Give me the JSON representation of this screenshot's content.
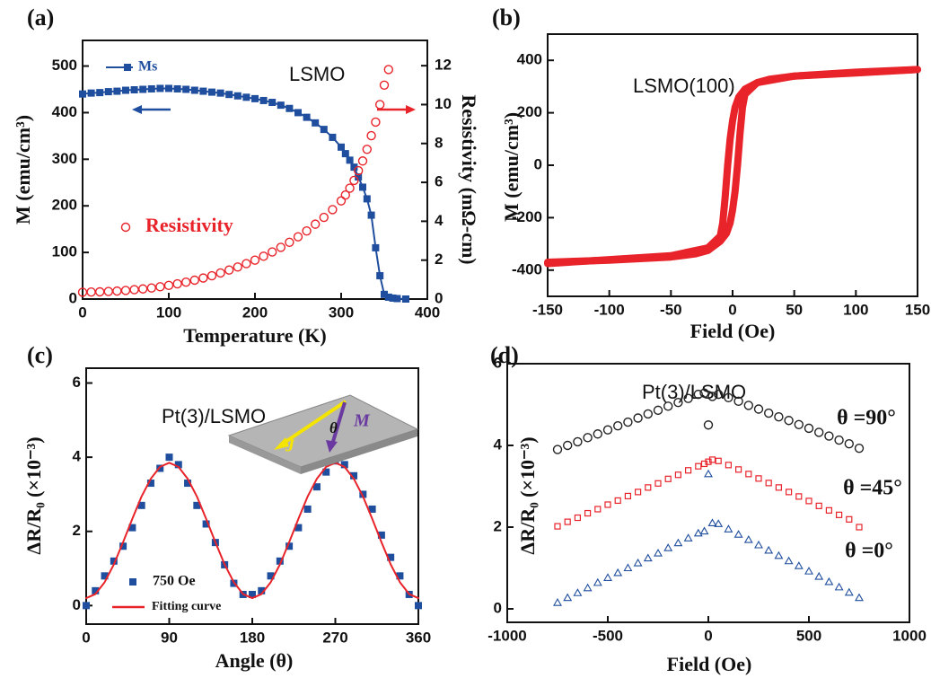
{
  "chart_data": [
    {
      "type": "line",
      "label": "(a)",
      "xlabel": "Temperature (K)",
      "ylabel": "M (emu/cm³)",
      "y2label": "Resistivity (mΩ-cm)",
      "annotations": [
        "LSMO"
      ],
      "xlim": [
        0,
        400
      ],
      "xticks": [
        0,
        100,
        200,
        300,
        400
      ],
      "ylim": [
        0,
        555
      ],
      "yticks": [
        0,
        100,
        200,
        300,
        400,
        500
      ],
      "y2lim": [
        0,
        13.3
      ],
      "y2ticks": [
        0,
        2,
        4,
        6,
        8,
        10,
        12
      ],
      "series": [
        {
          "name": "Ms",
          "color": "#1f4e9e",
          "marker": "square",
          "line": true,
          "x": [
            0,
            10,
            20,
            30,
            40,
            50,
            60,
            70,
            80,
            90,
            100,
            110,
            120,
            130,
            140,
            150,
            160,
            170,
            180,
            190,
            200,
            210,
            220,
            230,
            240,
            250,
            260,
            270,
            280,
            290,
            300,
            305,
            310,
            315,
            320,
            325,
            330,
            335,
            340,
            345,
            350,
            355,
            360,
            365,
            375
          ],
          "values": [
            440,
            442,
            443,
            445,
            446,
            448,
            449,
            450,
            451,
            452,
            452,
            451,
            450,
            448,
            446,
            444,
            442,
            439,
            436,
            433,
            430,
            426,
            422,
            416,
            409,
            400,
            390,
            378,
            364,
            347,
            326,
            312,
            298,
            283,
            262,
            240,
            215,
            180,
            110,
            50,
            10,
            4,
            2,
            1,
            0
          ]
        },
        {
          "name": "Resistivity",
          "color": "#e8232a",
          "marker": "circle-open",
          "axis": "y2",
          "x": [
            0,
            10,
            20,
            30,
            40,
            50,
            60,
            70,
            80,
            90,
            100,
            110,
            120,
            130,
            140,
            150,
            160,
            170,
            180,
            190,
            200,
            210,
            220,
            230,
            240,
            250,
            260,
            270,
            280,
            290,
            300,
            305,
            310,
            315,
            320,
            325,
            330,
            335,
            340,
            345,
            350,
            355
          ],
          "values": [
            0.35,
            0.36,
            0.37,
            0.39,
            0.41,
            0.44,
            0.48,
            0.52,
            0.57,
            0.63,
            0.7,
            0.78,
            0.87,
            0.97,
            1.08,
            1.2,
            1.34,
            1.49,
            1.65,
            1.82,
            2.0,
            2.2,
            2.42,
            2.66,
            2.92,
            3.2,
            3.5,
            3.85,
            4.2,
            4.6,
            5.05,
            5.35,
            5.7,
            6.1,
            6.6,
            7.1,
            7.7,
            8.4,
            9.1,
            10.0,
            11.0,
            11.8
          ]
        }
      ]
    },
    {
      "type": "line",
      "label": "(b)",
      "xlabel": "Field (Oe)",
      "ylabel": "M (emu/cm³)",
      "annotations": [
        "LSMO(100)"
      ],
      "xlim": [
        -150,
        150
      ],
      "xticks": [
        -150,
        -100,
        -50,
        0,
        50,
        100,
        150
      ],
      "ylim": [
        -500,
        500
      ],
      "yticks": [
        -400,
        -200,
        0,
        200,
        400
      ],
      "series": [
        {
          "color": "#e8232a",
          "style": "thick-line",
          "x": [
            150,
            100,
            50,
            30,
            20,
            10,
            5,
            2,
            0,
            -2,
            -4,
            -6,
            -8,
            -10,
            -20,
            -50,
            -100,
            -150
          ],
          "values": [
            365,
            355,
            340,
            328,
            315,
            290,
            260,
            220,
            170,
            100,
            0,
            -120,
            -220,
            -270,
            -315,
            -345,
            -360,
            -375
          ]
        },
        {
          "color": "#e8232a",
          "style": "thick-line",
          "x": [
            -150,
            -100,
            -50,
            -30,
            -20,
            -10,
            -5,
            -2,
            0,
            2,
            4,
            6,
            8,
            10,
            20,
            50,
            100,
            150
          ],
          "values": [
            -370,
            -362,
            -350,
            -338,
            -325,
            -290,
            -260,
            -220,
            -170,
            -100,
            0,
            120,
            220,
            270,
            315,
            340,
            352,
            365
          ]
        }
      ]
    },
    {
      "type": "line",
      "label": "(c)",
      "xlabel": "Angle (θ)",
      "ylabel": "ΔR/R₀ (×10⁻³)",
      "annotations": [
        "Pt(3)/LSMO",
        "θ",
        "J",
        "M"
      ],
      "xlim": [
        0,
        360
      ],
      "xticks": [
        0,
        90,
        180,
        270,
        360
      ],
      "ylim": [
        -0.5,
        6.4
      ],
      "yticks": [
        0,
        2,
        4,
        6
      ],
      "series": [
        {
          "name": "750 Oe",
          "color": "#1f4e9e",
          "marker": "square",
          "x": [
            0,
            10,
            20,
            30,
            40,
            50,
            60,
            70,
            80,
            90,
            100,
            110,
            120,
            130,
            140,
            150,
            160,
            170,
            180,
            190,
            200,
            210,
            220,
            230,
            240,
            250,
            260,
            270,
            280,
            290,
            300,
            310,
            320,
            330,
            340,
            350,
            360
          ],
          "values": [
            0,
            0.4,
            0.8,
            1.2,
            1.6,
            2.1,
            2.7,
            3.3,
            3.7,
            4.0,
            3.8,
            3.3,
            2.7,
            2.2,
            1.7,
            1.1,
            0.6,
            0.3,
            0.3,
            0.4,
            0.8,
            1.2,
            1.6,
            2.1,
            2.6,
            3.2,
            3.6,
            3.9,
            3.8,
            3.5,
            3.0,
            2.6,
            1.9,
            1.3,
            0.8,
            0.3,
            0.0
          ]
        },
        {
          "name": "Fitting curve",
          "color": "#e8232a",
          "line": true,
          "x": [
            0,
            10,
            20,
            30,
            40,
            50,
            60,
            70,
            80,
            90,
            100,
            110,
            120,
            130,
            140,
            150,
            160,
            170,
            180,
            190,
            200,
            210,
            220,
            230,
            240,
            250,
            260,
            270,
            280,
            290,
            300,
            310,
            320,
            330,
            340,
            350,
            360
          ],
          "values": [
            0.2,
            0.31,
            0.63,
            1.11,
            1.71,
            2.34,
            2.94,
            3.42,
            3.74,
            3.85,
            3.74,
            3.42,
            2.94,
            2.34,
            1.71,
            1.11,
            0.63,
            0.31,
            0.2,
            0.31,
            0.63,
            1.11,
            1.71,
            2.34,
            2.94,
            3.42,
            3.74,
            3.85,
            3.74,
            3.42,
            2.94,
            2.34,
            1.71,
            1.11,
            0.63,
            0.31,
            0.2
          ]
        }
      ]
    },
    {
      "type": "scatter",
      "label": "(d)",
      "xlabel": "Field (Oe)",
      "ylabel": "ΔR/R₀ (×10⁻³)",
      "annotations": [
        "Pt(3)/LSMO"
      ],
      "xlim": [
        -1000,
        1000
      ],
      "xticks": [
        -1000,
        -500,
        0,
        500,
        1000
      ],
      "ylim": [
        -0.33,
        6
      ],
      "yticks": [
        0,
        2,
        4,
        6
      ],
      "series": [
        {
          "name": "θ =90°",
          "color": "#222222",
          "marker": "circle-open",
          "x": [
            -750,
            -700,
            -650,
            -600,
            -550,
            -500,
            -450,
            -400,
            -350,
            -300,
            -250,
            -200,
            -150,
            -100,
            -50,
            -20,
            0,
            20,
            50,
            100,
            150,
            200,
            250,
            300,
            350,
            400,
            450,
            500,
            550,
            600,
            650,
            700,
            750
          ],
          "values": [
            3.9,
            4.0,
            4.09,
            4.19,
            4.28,
            4.38,
            4.48,
            4.57,
            4.67,
            4.77,
            4.86,
            4.96,
            5.05,
            5.15,
            5.25,
            5.28,
            4.5,
            5.2,
            5.25,
            5.17,
            5.08,
            4.98,
            4.89,
            4.79,
            4.7,
            4.61,
            4.51,
            4.42,
            4.32,
            4.23,
            4.13,
            4.04,
            3.93
          ]
        },
        {
          "name": "θ =45°",
          "color": "#e8232a",
          "marker": "square-open",
          "x": [
            -750,
            -700,
            -650,
            -600,
            -550,
            -500,
            -450,
            -400,
            -350,
            -300,
            -250,
            -200,
            -150,
            -100,
            -50,
            -20,
            0,
            20,
            50,
            100,
            150,
            200,
            250,
            300,
            350,
            400,
            450,
            500,
            550,
            600,
            650,
            700,
            750
          ],
          "values": [
            2.02,
            2.13,
            2.23,
            2.34,
            2.44,
            2.55,
            2.65,
            2.76,
            2.86,
            2.97,
            3.07,
            3.18,
            3.28,
            3.39,
            3.49,
            3.55,
            3.6,
            3.65,
            3.62,
            3.52,
            3.41,
            3.3,
            3.19,
            3.08,
            2.97,
            2.86,
            2.75,
            2.64,
            2.52,
            2.41,
            2.3,
            2.19,
            2.0
          ]
        },
        {
          "name": "θ =0°",
          "color": "#1f4e9e",
          "marker": "triangle-open",
          "x": [
            -750,
            -700,
            -650,
            -600,
            -550,
            -500,
            -450,
            -400,
            -350,
            -300,
            -250,
            -200,
            -150,
            -100,
            -50,
            -20,
            0,
            20,
            50,
            100,
            150,
            200,
            250,
            300,
            350,
            400,
            450,
            500,
            550,
            600,
            650,
            700,
            750
          ],
          "values": [
            0.15,
            0.27,
            0.39,
            0.51,
            0.64,
            0.76,
            0.88,
            1.0,
            1.12,
            1.24,
            1.36,
            1.49,
            1.61,
            1.73,
            1.85,
            1.9,
            3.3,
            2.1,
            2.08,
            1.95,
            1.82,
            1.69,
            1.56,
            1.43,
            1.3,
            1.17,
            1.05,
            0.92,
            0.79,
            0.66,
            0.53,
            0.4,
            0.27
          ]
        }
      ]
    }
  ]
}
